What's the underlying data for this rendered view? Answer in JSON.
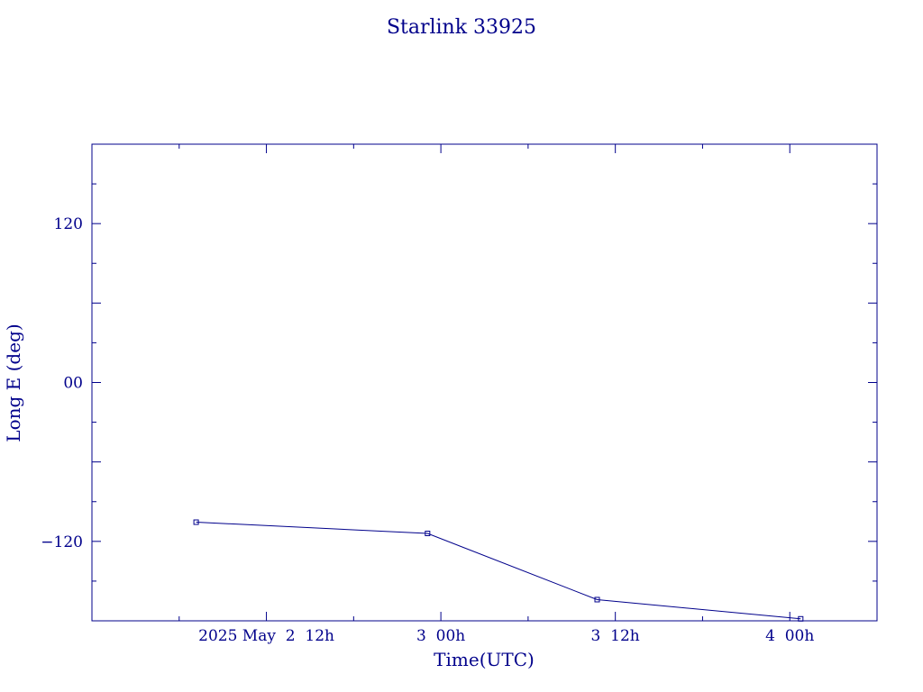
{
  "chart_data": {
    "type": "line",
    "title": "Starlink 33925",
    "xlabel": "Time(UTC)",
    "ylabel": "Long E (deg)",
    "xlim": [
      "2025-05-02T00:00Z",
      "2025-05-04T06:00Z"
    ],
    "ylim": [
      -180,
      180
    ],
    "x_ticks": [
      "2025-05-02T12:00Z",
      "2025-05-03T00:00Z",
      "2025-05-03T12:00Z",
      "2025-05-04T00:00Z"
    ],
    "x_tick_labels": [
      "2025 May  2  12h",
      "3  00h",
      "3  12h",
      "4  00h"
    ],
    "y_ticks": [
      120,
      0,
      -120
    ],
    "y_tick_labels": [
      "120",
      "00",
      "−120"
    ],
    "grid": false,
    "color": "#00008b",
    "series": [
      {
        "points": [
          {
            "x": "2025-05-02T07:10Z",
            "y": -105.5
          },
          {
            "x": "2025-05-02T23:05Z",
            "y": -114
          },
          {
            "x": "2025-05-03T10:45Z",
            "y": -164
          },
          {
            "x": "2025-05-04T00:45Z",
            "y": -178.5
          }
        ]
      }
    ]
  }
}
